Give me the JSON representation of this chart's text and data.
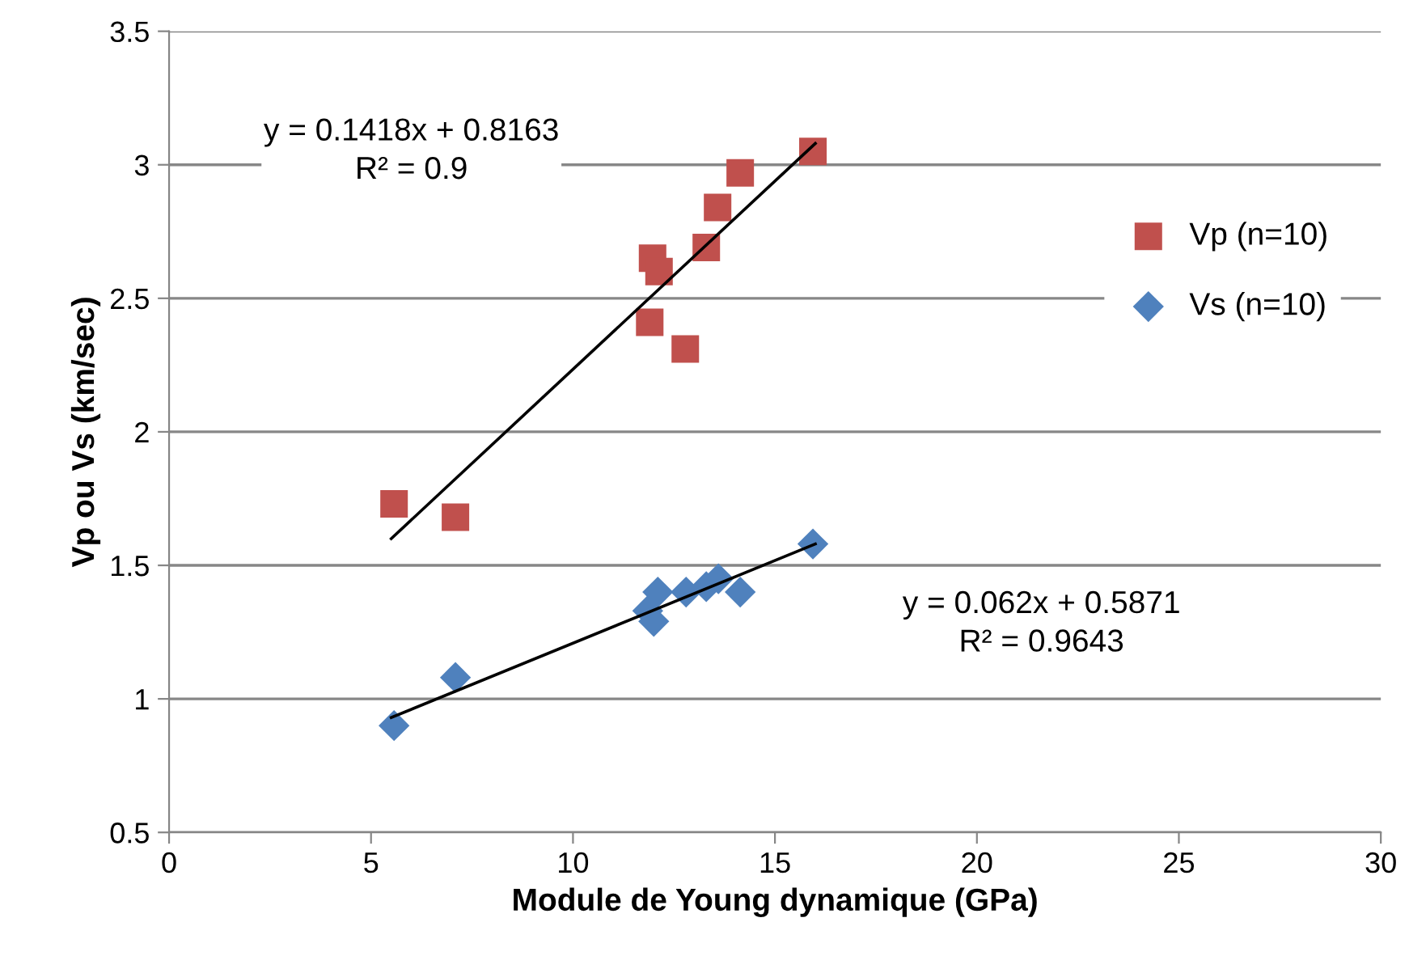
{
  "chart_data": {
    "type": "scatter",
    "xlabel": "Module de Young dynamique (GPa)",
    "ylabel": "Vp ou Vs (km/sec)",
    "xlim": [
      0,
      30
    ],
    "xticks": [
      0,
      5,
      10,
      15,
      20,
      25,
      30
    ],
    "ylim": [
      0.5,
      3.5
    ],
    "yticks": [
      0.5,
      1,
      1.5,
      2,
      2.5,
      3,
      3.5
    ],
    "grid": "y",
    "legend": "right",
    "series": [
      {
        "name": "Vp (n=10)",
        "marker": "square",
        "color": "#c0504d",
        "x": [
          5.57,
          7.09,
          11.9,
          11.97,
          12.13,
          12.78,
          13.3,
          13.58,
          14.14,
          15.94
        ],
        "values": [
          1.73,
          1.68,
          2.41,
          2.65,
          2.6,
          2.31,
          2.69,
          2.84,
          2.97,
          3.05
        ]
      },
      {
        "name": "Vs (n=10)",
        "marker": "diamond",
        "color": "#4f81bd",
        "x": [
          5.57,
          7.09,
          11.85,
          12.0,
          12.1,
          12.8,
          13.3,
          13.6,
          14.14,
          15.94
        ],
        "values": [
          0.9,
          1.08,
          1.33,
          1.29,
          1.4,
          1.4,
          1.42,
          1.45,
          1.4,
          1.58
        ]
      },
      {
        "type": "line",
        "color": "#000000",
        "x": [
          5.5,
          16.0
        ],
        "values": [
          1.6,
          3.08
        ]
      },
      {
        "type": "line",
        "color": "#000000",
        "x": [
          5.5,
          16.0
        ],
        "values": [
          0.93,
          1.58
        ]
      }
    ],
    "annotations": [
      "y = 0.1418x + 0.8163\nR² = 0.9",
      "y = 0.062x + 0.5871\nR² = 0.9643"
    ]
  }
}
